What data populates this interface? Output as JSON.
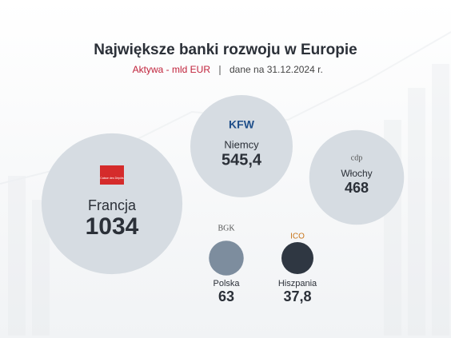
{
  "chart_data": {
    "type": "bubble",
    "title": "Największe banki rozwoju w Europie",
    "subtitle": "Aktywa - mld EUR",
    "note": "dane na 31.12.2024 r.",
    "categories": [
      "Francja",
      "Niemcy",
      "Włochy",
      "Polska",
      "Hiszpania"
    ],
    "values": [
      1034,
      545.4,
      468,
      63,
      37.8
    ],
    "value_labels": [
      "1034",
      "545,4",
      "468",
      "63",
      "37,8"
    ],
    "colors": [
      "#d6dce2",
      "#d6dce2",
      "#d6dce2",
      "#7d8d9e",
      "#2f3742"
    ],
    "logos": [
      "Caisse des Dépôts",
      "KFW",
      "cdp",
      "BGK",
      "ICO"
    ]
  }
}
